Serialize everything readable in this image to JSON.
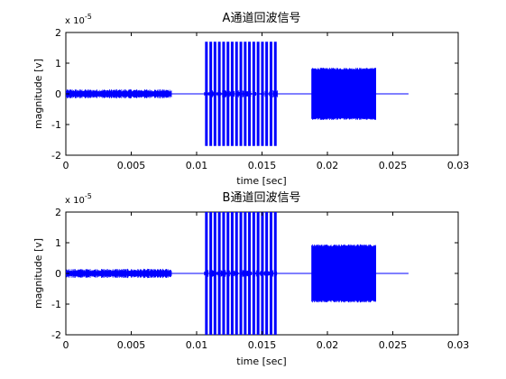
{
  "colors": {
    "background": "#ffffff",
    "axes": "#000000",
    "series": "#0000ff"
  },
  "chart_data": [
    {
      "type": "line",
      "title": "A通道回波信号",
      "xlabel": "time [sec]",
      "ylabel": "magnitude [v]",
      "exponent_label": "x 10",
      "exponent_power": "-5",
      "xlim": [
        0,
        0.03
      ],
      "ylim": [
        -2,
        2
      ],
      "x_ticks": [
        "0",
        "0.005",
        "0.01",
        "0.015",
        "0.02",
        "0.025",
        "0.03"
      ],
      "y_ticks": [
        "2",
        "1",
        "0",
        "-1",
        "-2"
      ],
      "grid": false,
      "series": [
        {
          "segments": [
            {
              "x_start": 0.0,
              "x_end": 0.0081,
              "amplitude": 0.15,
              "style": "noise"
            },
            {
              "x_start": 0.0106,
              "x_end": 0.0162,
              "amplitude": 1.7,
              "style": "pulses",
              "pulse_count": 17
            },
            {
              "x_start": 0.0188,
              "x_end": 0.0237,
              "amplitude": 0.85,
              "style": "burst"
            }
          ],
          "x_end": 0.0262
        }
      ]
    },
    {
      "type": "line",
      "title": "B通道回波信号",
      "xlabel": "time [sec]",
      "ylabel": "magnitude [v]",
      "exponent_label": "x 10",
      "exponent_power": "-5",
      "xlim": [
        0,
        0.03
      ],
      "ylim": [
        -2,
        2
      ],
      "x_ticks": [
        "0",
        "0.005",
        "0.01",
        "0.015",
        "0.02",
        "0.025",
        "0.03"
      ],
      "y_ticks": [
        "2",
        "1",
        "0",
        "-1",
        "-2"
      ],
      "grid": false,
      "series": [
        {
          "segments": [
            {
              "x_start": 0.0,
              "x_end": 0.0081,
              "amplitude": 0.15,
              "style": "noise"
            },
            {
              "x_start": 0.0106,
              "x_end": 0.0162,
              "amplitude": 2.0,
              "style": "pulses",
              "pulse_count": 17
            },
            {
              "x_start": 0.0188,
              "x_end": 0.0237,
              "amplitude": 0.95,
              "style": "burst"
            }
          ],
          "x_end": 0.0262
        }
      ]
    }
  ]
}
